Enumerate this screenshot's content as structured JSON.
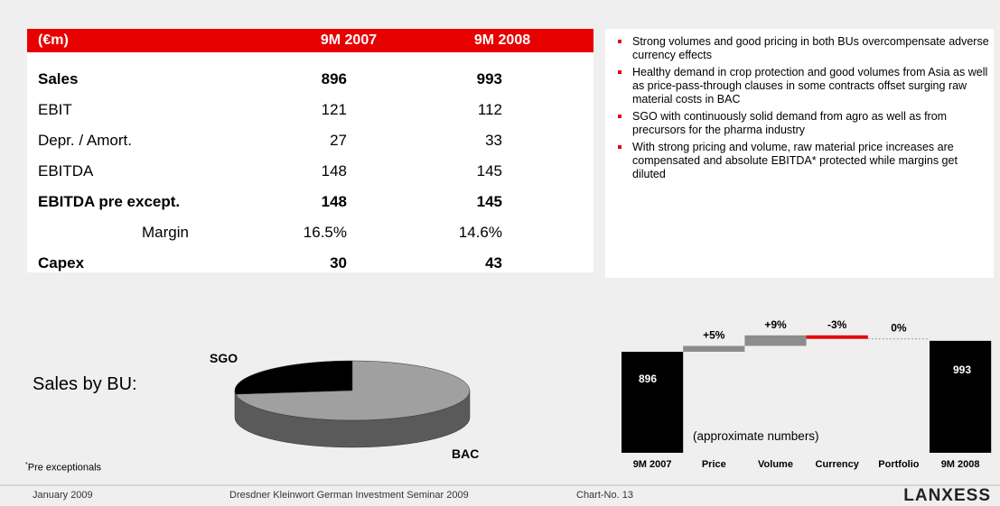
{
  "table": {
    "header": [
      "(€m)",
      "9M 2007",
      "9M 2008"
    ],
    "rows": [
      {
        "cells": [
          "Sales",
          "896",
          "993"
        ],
        "bold": true
      },
      {
        "cells": [
          "EBIT",
          "121",
          "112"
        ]
      },
      {
        "cells": [
          "Depr. / Amort.",
          "27",
          "33"
        ]
      },
      {
        "cells": [
          "EBITDA",
          "148",
          "145"
        ]
      },
      {
        "cells": [
          "EBITDA pre except.",
          "148",
          "145"
        ],
        "bold": true
      },
      {
        "cells": [
          "Margin",
          "16.5%",
          "14.6%"
        ],
        "indent": true
      },
      {
        "cells": [
          "Capex",
          "30",
          "43"
        ],
        "bold": true
      }
    ]
  },
  "bullets": [
    "Strong volumes and good pricing in both BUs overcompensate adverse currency effects",
    "Healthy demand in crop protection and good volumes from Asia as well as price-pass-through clauses in some contracts offset surging raw material costs in BAC",
    "SGO with continuously solid demand from agro as well as from precursors for the pharma industry",
    "With strong pricing and volume, raw material price increases are compensated and absolute EBITDA* protected while margins get diluted"
  ],
  "chart_data": [
    {
      "type": "pie",
      "title": "Sales by BU:",
      "categories": [
        "SGO",
        "BAC"
      ],
      "values": [
        27,
        73
      ],
      "colors": [
        "#000000",
        "#a0a0a0"
      ]
    },
    {
      "type": "waterfall",
      "categories": [
        "9M 2007",
        "Price",
        "Volume",
        "Currency",
        "Portfolio",
        "9M 2008"
      ],
      "values": [
        896,
        5,
        9,
        -3,
        0,
        993
      ],
      "value_labels": [
        "896",
        "+5%",
        "+9%",
        "-3%",
        "0%",
        "993"
      ],
      "kinds": [
        "total",
        "step",
        "step",
        "step",
        "step",
        "total"
      ],
      "colors": {
        "total": "#000000",
        "increase": "#8c8c8c",
        "decrease": "#e60000"
      },
      "annotation": "(approximate numbers)"
    }
  ],
  "footnote": {
    "mark": "*",
    "text": "Pre exceptionals"
  },
  "footer": {
    "date": "January 2009",
    "event": "Dresdner Kleinwort German Investment Seminar 2009",
    "chart_no": "Chart-No. 13",
    "logo": "LANXESS"
  }
}
